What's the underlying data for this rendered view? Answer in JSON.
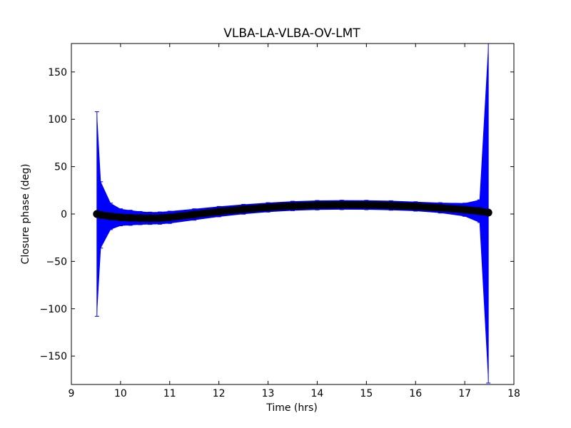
{
  "chart_data": {
    "type": "scatter",
    "title": "VLBA-LA-VLBA-OV-LMT",
    "xlabel": "Time (hrs)",
    "ylabel": "Closure phase (deg)",
    "xlim": [
      9,
      18
    ],
    "ylim": [
      -180,
      180
    ],
    "xticks": [
      9,
      10,
      11,
      12,
      13,
      14,
      15,
      16,
      17,
      18
    ],
    "yticks": [
      -150,
      -100,
      -50,
      0,
      50,
      100,
      150
    ],
    "xtick_labels": [
      "9",
      "10",
      "11",
      "12",
      "13",
      "14",
      "15",
      "16",
      "17",
      "18"
    ],
    "ytick_labels": [
      "−150",
      "−100",
      "−50",
      "0",
      "50",
      "100",
      "150"
    ],
    "grid": false,
    "legend": "none",
    "series": [
      {
        "marker": "circle",
        "color": "#000000",
        "errorbar_color": "#0000ff",
        "x": [
          9.52,
          9.6,
          9.8,
          10.0,
          10.2,
          10.4,
          10.6,
          10.8,
          11.0,
          11.5,
          12.0,
          12.5,
          13.0,
          13.5,
          14.0,
          14.5,
          15.0,
          15.5,
          16.0,
          16.5,
          17.0,
          17.3,
          17.48
        ],
        "y": [
          0,
          -1,
          -2.5,
          -3.5,
          -4,
          -4.3,
          -4.5,
          -4.3,
          -3.5,
          -0.5,
          2.5,
          5,
          7,
          8.5,
          9.3,
          9.6,
          9.5,
          9,
          8,
          6.5,
          4.5,
          3,
          1.5
        ],
        "yerr": [
          108,
          35,
          14,
          9,
          8,
          7,
          6.5,
          6.5,
          6.5,
          6,
          5.5,
          5.2,
          5,
          5,
          5,
          5,
          5,
          5,
          5,
          5.5,
          7,
          12,
          180
        ]
      }
    ]
  }
}
